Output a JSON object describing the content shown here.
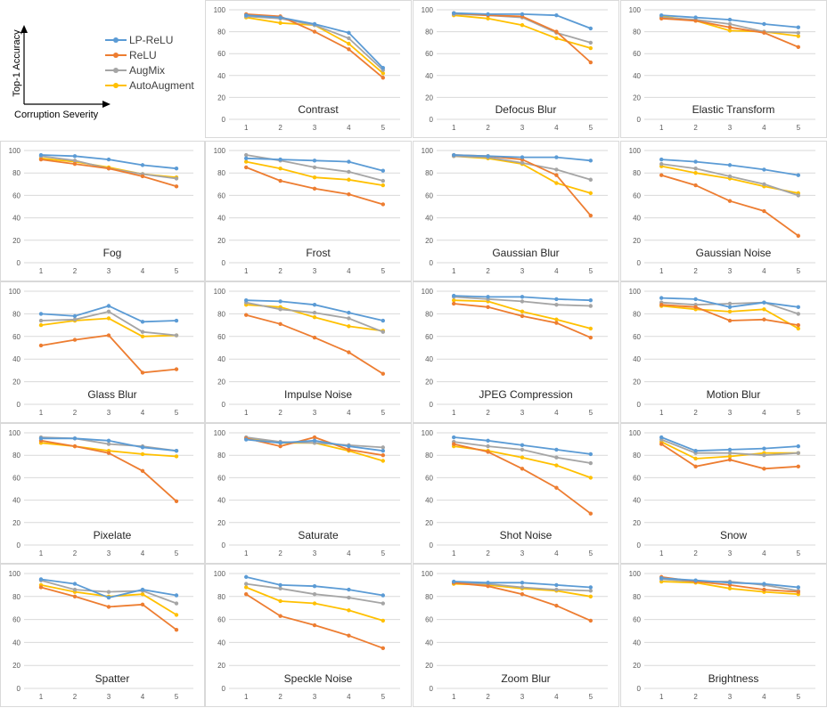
{
  "axis_labels": {
    "y": "Top-1 Accuracy",
    "x": "Corruption Severity"
  },
  "legend": [
    {
      "name": "LP-ReLU",
      "color": "#5b9bd5"
    },
    {
      "name": "ReLU",
      "color": "#ed7d31"
    },
    {
      "name": "AugMix",
      "color": "#a5a5a5"
    },
    {
      "name": "AutoAugment",
      "color": "#ffc000"
    }
  ],
  "chart_data": [
    {
      "type": "line",
      "title": "Contrast",
      "x": [
        1,
        2,
        3,
        4,
        5
      ],
      "ylim": [
        0,
        100
      ],
      "yticks": [
        0,
        20,
        40,
        60,
        80,
        100
      ],
      "series": [
        {
          "name": "LP-ReLU",
          "values": [
            95,
            93,
            87,
            79,
            47
          ]
        },
        {
          "name": "ReLU",
          "values": [
            96,
            94,
            80,
            64,
            38
          ]
        },
        {
          "name": "AugMix",
          "values": [
            94,
            92,
            86,
            74,
            45
          ]
        },
        {
          "name": "AutoAugment",
          "values": [
            93,
            88,
            86,
            69,
            42
          ]
        }
      ]
    },
    {
      "type": "line",
      "title": "Defocus Blur",
      "x": [
        1,
        2,
        3,
        4,
        5
      ],
      "ylim": [
        0,
        100
      ],
      "yticks": [
        0,
        20,
        40,
        60,
        80,
        100
      ],
      "series": [
        {
          "name": "LP-ReLU",
          "values": [
            97,
            96,
            96,
            95,
            83
          ]
        },
        {
          "name": "ReLU",
          "values": [
            97,
            95,
            94,
            80,
            52
          ]
        },
        {
          "name": "AugMix",
          "values": [
            96,
            95,
            93,
            79,
            70
          ]
        },
        {
          "name": "AutoAugment",
          "values": [
            95,
            92,
            86,
            74,
            65
          ]
        }
      ]
    },
    {
      "type": "line",
      "title": "Elastic Transform",
      "x": [
        1,
        2,
        3,
        4,
        5
      ],
      "ylim": [
        0,
        100
      ],
      "yticks": [
        0,
        20,
        40,
        60,
        80,
        100
      ],
      "series": [
        {
          "name": "LP-ReLU",
          "values": [
            95,
            93,
            91,
            87,
            84
          ]
        },
        {
          "name": "ReLU",
          "values": [
            92,
            90,
            84,
            79,
            66
          ]
        },
        {
          "name": "AugMix",
          "values": [
            93,
            91,
            87,
            80,
            79
          ]
        },
        {
          "name": "AutoAugment",
          "values": [
            94,
            90,
            81,
            80,
            76
          ]
        }
      ]
    },
    {
      "type": "line",
      "title": "Fog",
      "x": [
        1,
        2,
        3,
        4,
        5
      ],
      "ylim": [
        0,
        100
      ],
      "yticks": [
        0,
        20,
        40,
        60,
        80,
        100
      ],
      "series": [
        {
          "name": "LP-ReLU",
          "values": [
            96,
            95,
            92,
            87,
            84
          ]
        },
        {
          "name": "ReLU",
          "values": [
            92,
            88,
            84,
            77,
            68
          ]
        },
        {
          "name": "AugMix",
          "values": [
            95,
            91,
            84,
            79,
            75
          ]
        },
        {
          "name": "AutoAugment",
          "values": [
            93,
            90,
            85,
            79,
            76
          ]
        }
      ]
    },
    {
      "type": "line",
      "title": "Frost",
      "x": [
        1,
        2,
        3,
        4,
        5
      ],
      "ylim": [
        0,
        100
      ],
      "yticks": [
        0,
        20,
        40,
        60,
        80,
        100
      ],
      "series": [
        {
          "name": "LP-ReLU",
          "values": [
            93,
            92,
            91,
            90,
            82
          ]
        },
        {
          "name": "ReLU",
          "values": [
            85,
            73,
            66,
            61,
            52
          ]
        },
        {
          "name": "AugMix",
          "values": [
            96,
            91,
            85,
            81,
            73
          ]
        },
        {
          "name": "AutoAugment",
          "values": [
            90,
            84,
            76,
            74,
            69
          ]
        }
      ]
    },
    {
      "type": "line",
      "title": "Gaussian Blur",
      "x": [
        1,
        2,
        3,
        4,
        5
      ],
      "ylim": [
        0,
        100
      ],
      "yticks": [
        0,
        20,
        40,
        60,
        80,
        100
      ],
      "series": [
        {
          "name": "LP-ReLU",
          "values": [
            96,
            95,
            94,
            94,
            91
          ]
        },
        {
          "name": "ReLU",
          "values": [
            96,
            95,
            92,
            78,
            42
          ]
        },
        {
          "name": "AugMix",
          "values": [
            95,
            94,
            89,
            83,
            74
          ]
        },
        {
          "name": "AutoAugment",
          "values": [
            95,
            93,
            88,
            71,
            62
          ]
        }
      ]
    },
    {
      "type": "line",
      "title": "Gaussian Noise",
      "x": [
        1,
        2,
        3,
        4,
        5
      ],
      "ylim": [
        0,
        100
      ],
      "yticks": [
        0,
        20,
        40,
        60,
        80,
        100
      ],
      "series": [
        {
          "name": "LP-ReLU",
          "values": [
            92,
            90,
            87,
            83,
            78
          ]
        },
        {
          "name": "ReLU",
          "values": [
            78,
            69,
            55,
            46,
            24
          ]
        },
        {
          "name": "AugMix",
          "values": [
            88,
            84,
            77,
            70,
            60
          ]
        },
        {
          "name": "AutoAugment",
          "values": [
            86,
            80,
            75,
            68,
            62
          ]
        }
      ]
    },
    {
      "type": "line",
      "title": "Glass Blur",
      "x": [
        1,
        2,
        3,
        4,
        5
      ],
      "ylim": [
        0,
        100
      ],
      "yticks": [
        0,
        20,
        40,
        60,
        80,
        100
      ],
      "series": [
        {
          "name": "LP-ReLU",
          "values": [
            80,
            78,
            87,
            73,
            74
          ]
        },
        {
          "name": "ReLU",
          "values": [
            52,
            57,
            61,
            28,
            31
          ]
        },
        {
          "name": "AugMix",
          "values": [
            74,
            75,
            82,
            64,
            61
          ]
        },
        {
          "name": "AutoAugment",
          "values": [
            70,
            74,
            76,
            60,
            61
          ]
        }
      ]
    },
    {
      "type": "line",
      "title": "Impulse Noise",
      "x": [
        1,
        2,
        3,
        4,
        5
      ],
      "ylim": [
        0,
        100
      ],
      "yticks": [
        0,
        20,
        40,
        60,
        80,
        100
      ],
      "series": [
        {
          "name": "LP-ReLU",
          "values": [
            92,
            91,
            88,
            81,
            74
          ]
        },
        {
          "name": "ReLU",
          "values": [
            79,
            71,
            59,
            46,
            27
          ]
        },
        {
          "name": "AugMix",
          "values": [
            90,
            84,
            81,
            76,
            64
          ]
        },
        {
          "name": "AutoAugment",
          "values": [
            88,
            86,
            77,
            69,
            65
          ]
        }
      ]
    },
    {
      "type": "line",
      "title": "JPEG Compression",
      "x": [
        1,
        2,
        3,
        4,
        5
      ],
      "ylim": [
        0,
        100
      ],
      "yticks": [
        0,
        20,
        40,
        60,
        80,
        100
      ],
      "series": [
        {
          "name": "LP-ReLU",
          "values": [
            96,
            95,
            95,
            93,
            92
          ]
        },
        {
          "name": "ReLU",
          "values": [
            89,
            86,
            78,
            72,
            59
          ]
        },
        {
          "name": "AugMix",
          "values": [
            95,
            93,
            91,
            88,
            87
          ]
        },
        {
          "name": "AutoAugment",
          "values": [
            92,
            91,
            82,
            75,
            67
          ]
        }
      ]
    },
    {
      "type": "line",
      "title": "Motion Blur",
      "x": [
        1,
        2,
        3,
        4,
        5
      ],
      "ylim": [
        0,
        100
      ],
      "yticks": [
        0,
        20,
        40,
        60,
        80,
        100
      ],
      "series": [
        {
          "name": "LP-ReLU",
          "values": [
            94,
            93,
            86,
            90,
            86
          ]
        },
        {
          "name": "ReLU",
          "values": [
            88,
            86,
            74,
            75,
            70
          ]
        },
        {
          "name": "AugMix",
          "values": [
            90,
            88,
            89,
            90,
            80
          ]
        },
        {
          "name": "AutoAugment",
          "values": [
            87,
            84,
            82,
            84,
            67
          ]
        }
      ]
    },
    {
      "type": "line",
      "title": "Pixelate",
      "x": [
        1,
        2,
        3,
        4,
        5
      ],
      "ylim": [
        0,
        100
      ],
      "yticks": [
        0,
        20,
        40,
        60,
        80,
        100
      ],
      "series": [
        {
          "name": "LP-ReLU",
          "values": [
            95,
            95,
            93,
            87,
            84
          ]
        },
        {
          "name": "ReLU",
          "values": [
            93,
            88,
            82,
            66,
            39
          ]
        },
        {
          "name": "AugMix",
          "values": [
            96,
            95,
            90,
            88,
            84
          ]
        },
        {
          "name": "AutoAugment",
          "values": [
            91,
            88,
            84,
            81,
            79
          ]
        }
      ]
    },
    {
      "type": "line",
      "title": "Saturate",
      "x": [
        1,
        2,
        3,
        4,
        5
      ],
      "ylim": [
        0,
        100
      ],
      "yticks": [
        0,
        20,
        40,
        60,
        80,
        100
      ],
      "series": [
        {
          "name": "LP-ReLU",
          "values": [
            94,
            91,
            93,
            88,
            84
          ]
        },
        {
          "name": "ReLU",
          "values": [
            95,
            88,
            96,
            85,
            80
          ]
        },
        {
          "name": "AugMix",
          "values": [
            96,
            92,
            91,
            89,
            87
          ]
        },
        {
          "name": "AutoAugment",
          "values": [
            95,
            91,
            91,
            84,
            75
          ]
        }
      ]
    },
    {
      "type": "line",
      "title": "Shot Noise",
      "x": [
        1,
        2,
        3,
        4,
        5
      ],
      "ylim": [
        0,
        100
      ],
      "yticks": [
        0,
        20,
        40,
        60,
        80,
        100
      ],
      "series": [
        {
          "name": "LP-ReLU",
          "values": [
            96,
            93,
            89,
            85,
            81
          ]
        },
        {
          "name": "ReLU",
          "values": [
            90,
            83,
            68,
            51,
            28
          ]
        },
        {
          "name": "AugMix",
          "values": [
            92,
            88,
            85,
            78,
            73
          ]
        },
        {
          "name": "AutoAugment",
          "values": [
            88,
            84,
            78,
            71,
            60
          ]
        }
      ]
    },
    {
      "type": "line",
      "title": "Snow",
      "x": [
        1,
        2,
        3,
        4,
        5
      ],
      "ylim": [
        0,
        100
      ],
      "yticks": [
        0,
        20,
        40,
        60,
        80,
        100
      ],
      "series": [
        {
          "name": "LP-ReLU",
          "values": [
            96,
            84,
            85,
            86,
            88
          ]
        },
        {
          "name": "ReLU",
          "values": [
            90,
            70,
            76,
            68,
            70
          ]
        },
        {
          "name": "AugMix",
          "values": [
            94,
            82,
            82,
            80,
            82
          ]
        },
        {
          "name": "AutoAugment",
          "values": [
            92,
            77,
            79,
            82,
            82
          ]
        }
      ]
    },
    {
      "type": "line",
      "title": "Spatter",
      "x": [
        1,
        2,
        3,
        4,
        5
      ],
      "ylim": [
        0,
        100
      ],
      "yticks": [
        0,
        20,
        40,
        60,
        80,
        100
      ],
      "series": [
        {
          "name": "LP-ReLU",
          "values": [
            95,
            91,
            79,
            86,
            81
          ]
        },
        {
          "name": "ReLU",
          "values": [
            88,
            80,
            71,
            73,
            51
          ]
        },
        {
          "name": "AugMix",
          "values": [
            94,
            86,
            84,
            85,
            74
          ]
        },
        {
          "name": "AutoAugment",
          "values": [
            90,
            84,
            80,
            82,
            64
          ]
        }
      ]
    },
    {
      "type": "line",
      "title": "Speckle Noise",
      "x": [
        1,
        2,
        3,
        4,
        5
      ],
      "ylim": [
        0,
        100
      ],
      "yticks": [
        0,
        20,
        40,
        60,
        80,
        100
      ],
      "series": [
        {
          "name": "LP-ReLU",
          "values": [
            97,
            90,
            89,
            86,
            81
          ]
        },
        {
          "name": "ReLU",
          "values": [
            82,
            63,
            55,
            46,
            35
          ]
        },
        {
          "name": "AugMix",
          "values": [
            91,
            87,
            82,
            79,
            74
          ]
        },
        {
          "name": "AutoAugment",
          "values": [
            88,
            76,
            74,
            68,
            59
          ]
        }
      ]
    },
    {
      "type": "line",
      "title": "Zoom Blur",
      "x": [
        1,
        2,
        3,
        4,
        5
      ],
      "ylim": [
        0,
        100
      ],
      "yticks": [
        0,
        20,
        40,
        60,
        80,
        100
      ],
      "series": [
        {
          "name": "LP-ReLU",
          "values": [
            93,
            92,
            92,
            90,
            88
          ]
        },
        {
          "name": "ReLU",
          "values": [
            92,
            89,
            82,
            72,
            59
          ]
        },
        {
          "name": "AugMix",
          "values": [
            92,
            91,
            88,
            86,
            85
          ]
        },
        {
          "name": "AutoAugment",
          "values": [
            91,
            90,
            87,
            85,
            80
          ]
        }
      ]
    },
    {
      "type": "line",
      "title": "Brightness",
      "x": [
        1,
        2,
        3,
        4,
        5
      ],
      "ylim": [
        0,
        100
      ],
      "yticks": [
        0,
        20,
        40,
        60,
        80,
        100
      ],
      "series": [
        {
          "name": "LP-ReLU",
          "values": [
            96,
            94,
            92,
            91,
            88
          ]
        },
        {
          "name": "ReLU",
          "values": [
            97,
            93,
            90,
            86,
            84
          ]
        },
        {
          "name": "AugMix",
          "values": [
            95,
            93,
            93,
            90,
            85
          ]
        },
        {
          "name": "AutoAugment",
          "values": [
            93,
            92,
            87,
            84,
            82
          ]
        }
      ]
    }
  ]
}
